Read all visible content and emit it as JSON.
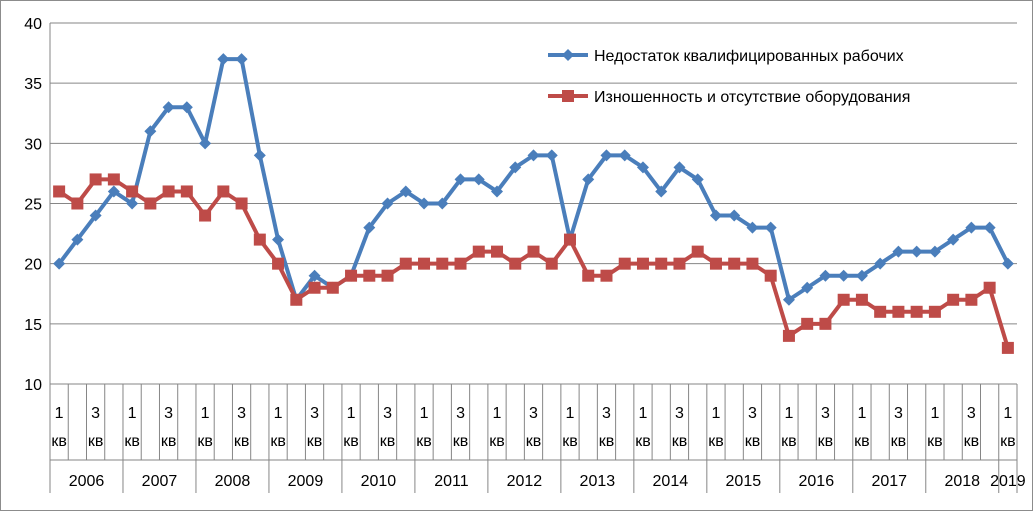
{
  "chart_data": {
    "type": "line",
    "ylim": [
      10,
      40
    ],
    "yticks": [
      10,
      15,
      20,
      25,
      30,
      35,
      40
    ],
    "quarter_labels": [
      "1",
      "кв",
      "3",
      "кв"
    ],
    "last_quarter_label": [
      "1",
      "кв"
    ],
    "years": [
      "2006",
      "2007",
      "2008",
      "2009",
      "2010",
      "2011",
      "2012",
      "2013",
      "2014",
      "2015",
      "2016",
      "2017",
      "2018",
      "2019"
    ],
    "legend_position": "top-right",
    "series": [
      {
        "name": "Недостаток квалифицированных рабочих",
        "color": "#4a7ebb",
        "marker": "diamond",
        "values": [
          20,
          22,
          24,
          26,
          25,
          31,
          33,
          33,
          30,
          37,
          37,
          29,
          22,
          17,
          19,
          18,
          19,
          23,
          25,
          26,
          25,
          25,
          27,
          27,
          26,
          28,
          29,
          29,
          22,
          27,
          29,
          29,
          28,
          26,
          28,
          27,
          24,
          24,
          23,
          23,
          17,
          18,
          19,
          19,
          19,
          20,
          21,
          21,
          21,
          22,
          23,
          23,
          20
        ]
      },
      {
        "name": "Изношенность и отсутствие оборудования",
        "color": "#be4b48",
        "marker": "square",
        "values": [
          26,
          25,
          27,
          27,
          26,
          25,
          26,
          26,
          24,
          26,
          25,
          22,
          20,
          17,
          18,
          18,
          19,
          19,
          19,
          20,
          20,
          20,
          20,
          21,
          21,
          20,
          21,
          20,
          22,
          19,
          19,
          20,
          20,
          20,
          20,
          21,
          20,
          20,
          20,
          19,
          14,
          15,
          15,
          17,
          17,
          16,
          16,
          16,
          16,
          17,
          17,
          18,
          13
        ]
      }
    ]
  }
}
